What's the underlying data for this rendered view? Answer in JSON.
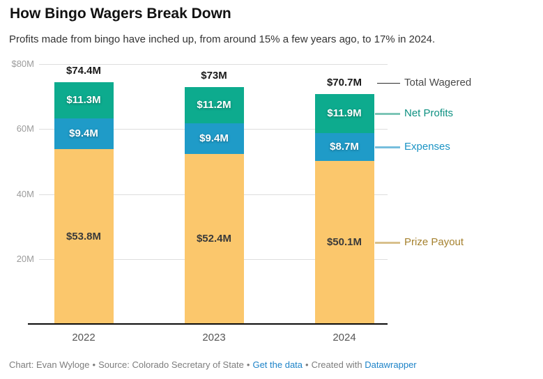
{
  "header": {
    "title": "How Bingo Wagers Break Down",
    "subtitle": "Profits made from bingo have inched up, from around 15% a few years ago, to 17% in 2024."
  },
  "chart_data": {
    "type": "bar",
    "stacked": true,
    "title": "How Bingo Wagers Break Down",
    "categories": [
      "2022",
      "2023",
      "2024"
    ],
    "series": [
      {
        "name": "Prize Payout",
        "values": [
          53.8,
          52.4,
          50.1
        ],
        "value_labels": [
          "$53.8M",
          "$52.4M",
          "$50.1M"
        ],
        "color": "#FBC76C",
        "label_color": "#3a3a3a"
      },
      {
        "name": "Expenses",
        "values": [
          9.4,
          9.4,
          8.7
        ],
        "value_labels": [
          "$9.4M",
          "$9.4M",
          "$8.7M"
        ],
        "color": "#1F9BC8",
        "label_color": "#ffffff"
      },
      {
        "name": "Net Profits",
        "values": [
          11.3,
          11.2,
          11.9
        ],
        "value_labels": [
          "$11.3M",
          "$11.2M",
          "$11.9M"
        ],
        "color": "#0DAB8E",
        "label_color": "#ffffff"
      }
    ],
    "totals": {
      "name": "Total Wagered",
      "values": [
        74.4,
        73,
        70.7
      ],
      "labels": [
        "$74.4M",
        "$73M",
        "$70.7M"
      ]
    },
    "y_axis": {
      "ticks": [
        20,
        40,
        60,
        80
      ],
      "tick_labels": [
        "20M",
        "40M",
        "60M",
        "$80M"
      ]
    },
    "ylim": [
      0,
      80
    ],
    "grid": true,
    "legend_position": "right",
    "legend": [
      {
        "label": "Total Wagered",
        "text_color": "#4a4a4a",
        "line_color": "#2b2b2b"
      },
      {
        "label": "Net Profits",
        "text_color": "#0d9081",
        "line_color": "#7cc5b6"
      },
      {
        "label": "Expenses",
        "text_color": "#1a93c4",
        "line_color": "#76bedd"
      },
      {
        "label": "Prize Payout",
        "text_color": "#a5812e",
        "line_color": "#d8c08c"
      }
    ]
  },
  "footer": {
    "chart_credit": "Chart: Evan Wyloge",
    "source": "Source: Colorado Secretary of State",
    "get_data_label": "Get the data",
    "created_with": "Created with",
    "datawrapper_label": "Datawrapper",
    "separator": "•"
  }
}
